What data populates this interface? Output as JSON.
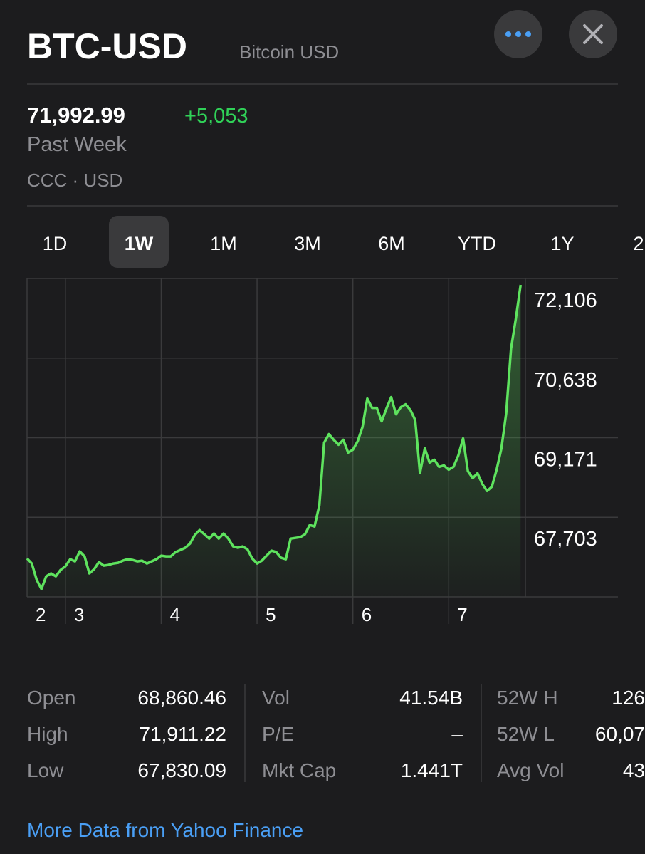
{
  "header": {
    "symbol": "BTC-USD",
    "name": "Bitcoin USD"
  },
  "quote": {
    "price": "71,992.99",
    "change": "+5,053",
    "period": "Past Week",
    "source": "CCC · USD"
  },
  "ranges": {
    "items": [
      "1D",
      "1W",
      "1M",
      "3M",
      "6M",
      "YTD",
      "1Y",
      "2"
    ],
    "selected": 1
  },
  "chart_data": {
    "type": "line",
    "color": "#5ee35e",
    "x": [
      2.6,
      2.65,
      2.7,
      2.75,
      2.8,
      2.85,
      2.9,
      2.95,
      3.0,
      3.05,
      3.1,
      3.15,
      3.2,
      3.25,
      3.3,
      3.35,
      3.4,
      3.45,
      3.5,
      3.55,
      3.6,
      3.65,
      3.7,
      3.75,
      3.8,
      3.85,
      3.9,
      3.95,
      4.0,
      4.05,
      4.1,
      4.15,
      4.2,
      4.25,
      4.3,
      4.35,
      4.4,
      4.45,
      4.5,
      4.55,
      4.6,
      4.65,
      4.7,
      4.75,
      4.8,
      4.85,
      4.9,
      4.95,
      5.0,
      5.05,
      5.1,
      5.15,
      5.2,
      5.25,
      5.3,
      5.35,
      5.4,
      5.45,
      5.5,
      5.55,
      5.6,
      5.65,
      5.7,
      5.75,
      5.8,
      5.85,
      5.9,
      5.95,
      6.0,
      6.05,
      6.1,
      6.15,
      6.2,
      6.25,
      6.3,
      6.35,
      6.4,
      6.45,
      6.5,
      6.55,
      6.6,
      6.65,
      6.7,
      6.75,
      6.8,
      6.85,
      6.9,
      6.95,
      7.0,
      7.05,
      7.1,
      7.15,
      7.2,
      7.25,
      7.3,
      7.35,
      7.4,
      7.45,
      7.5,
      7.55,
      7.6,
      7.65,
      7.7,
      7.75
    ],
    "values": [
      66943,
      66851,
      66550,
      66380,
      66615,
      66668,
      66615,
      66733,
      66799,
      66930,
      66891,
      67074,
      66982,
      66668,
      66746,
      66878,
      66812,
      66825,
      66851,
      66864,
      66904,
      66930,
      66917,
      66891,
      66904,
      66851,
      66891,
      66930,
      66995,
      66982,
      66982,
      67061,
      67100,
      67140,
      67218,
      67375,
      67467,
      67389,
      67310,
      67402,
      67310,
      67402,
      67310,
      67166,
      67140,
      67166,
      67113,
      66943,
      66851,
      66904,
      66995,
      67087,
      67061,
      66956,
      66930,
      67310,
      67323,
      67336,
      67389,
      67559,
      67533,
      67926,
      69079,
      69236,
      69131,
      69040,
      69131,
      68896,
      68948,
      69105,
      69367,
      69891,
      69721,
      69721,
      69472,
      69708,
      69918,
      69603,
      69734,
      69787,
      69682,
      69498,
      68516,
      68974,
      68712,
      68764,
      68633,
      68660,
      68581,
      68633,
      68843,
      69158,
      68555,
      68424,
      68516,
      68319,
      68188,
      68267,
      68581,
      68974,
      69629,
      70809,
      71359,
      71988
    ],
    "xlim": [
      2.6,
      7.8
    ],
    "xticks": [
      2,
      3,
      4,
      5,
      6,
      7
    ],
    "ylim": [
      66235,
      72106
    ],
    "yticks": [
      {
        "value": 67703,
        "label": "67,703"
      },
      {
        "value": 69171,
        "label": "69,171"
      },
      {
        "value": 70638,
        "label": "70,638"
      },
      {
        "value": 72106,
        "label": "72,106"
      }
    ],
    "grid": true
  },
  "stats": {
    "columns": [
      {
        "rows": [
          {
            "label": "Open",
            "value": "68,860.46"
          },
          {
            "label": "High",
            "value": "71,911.22"
          },
          {
            "label": "Low",
            "value": "67,830.09"
          }
        ]
      },
      {
        "rows": [
          {
            "label": "Vol",
            "value": "41.54B"
          },
          {
            "label": "P/E",
            "value": "–"
          },
          {
            "label": "Mkt Cap",
            "value": "1.441T"
          }
        ]
      },
      {
        "rows": [
          {
            "label": "52W H",
            "value": "126"
          },
          {
            "label": "52W L",
            "value": "60,07"
          },
          {
            "label": "Avg Vol",
            "value": "43"
          }
        ]
      }
    ]
  },
  "link": "More Data from Yahoo Finance"
}
